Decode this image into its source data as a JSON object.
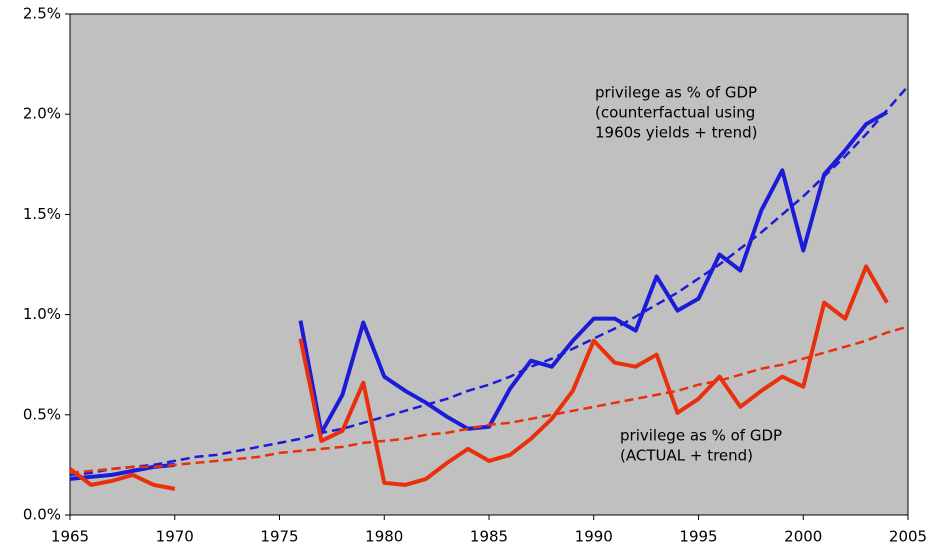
{
  "chart_data": {
    "type": "line",
    "x": [
      1965,
      1966,
      1967,
      1968,
      1969,
      1970,
      1971,
      1972,
      1973,
      1974,
      1975,
      1976,
      1977,
      1978,
      1979,
      1980,
      1981,
      1982,
      1983,
      1984,
      1985,
      1986,
      1987,
      1988,
      1989,
      1990,
      1991,
      1992,
      1993,
      1994,
      1995,
      1996,
      1997,
      1998,
      1999,
      2000,
      2001,
      2002,
      2003,
      2004,
      2005
    ],
    "series": [
      {
        "color": "#1c1cd8",
        "dashed": false,
        "values": [
          0.18,
          0.19,
          0.2,
          0.22,
          0.24,
          0.25,
          null,
          null,
          null,
          null,
          null,
          0.97,
          0.41,
          0.6,
          0.96,
          0.69,
          0.62,
          0.56,
          0.49,
          0.43,
          0.44,
          0.63,
          0.77,
          0.74,
          0.87,
          0.98,
          0.98,
          0.92,
          1.19,
          1.02,
          1.08,
          1.3,
          1.22,
          1.52,
          1.72,
          1.32,
          1.7,
          1.82,
          1.95,
          2.01,
          null
        ]
      },
      {
        "color": "#1c1cd8",
        "dashed": true,
        "values": [
          0.2,
          0.21,
          0.23,
          0.24,
          0.25,
          0.27,
          0.29,
          0.3,
          0.32,
          0.34,
          0.36,
          0.38,
          0.41,
          0.43,
          0.46,
          0.49,
          0.52,
          0.55,
          0.58,
          0.62,
          0.65,
          0.69,
          0.74,
          0.78,
          0.83,
          0.88,
          0.93,
          0.99,
          1.05,
          1.11,
          1.18,
          1.25,
          1.33,
          1.41,
          1.5,
          1.59,
          1.69,
          1.79,
          1.9,
          2.02,
          2.14
        ]
      },
      {
        "color": "#e8300c",
        "dashed": false,
        "values": [
          0.23,
          0.15,
          0.17,
          0.2,
          0.15,
          0.13,
          null,
          null,
          null,
          null,
          null,
          0.88,
          0.37,
          0.42,
          0.66,
          0.16,
          0.15,
          0.18,
          0.26,
          0.33,
          0.27,
          0.3,
          0.38,
          0.48,
          0.62,
          0.87,
          0.76,
          0.74,
          0.8,
          0.51,
          0.58,
          0.69,
          0.54,
          0.62,
          0.69,
          0.64,
          1.06,
          0.98,
          1.24,
          1.06,
          null
        ]
      },
      {
        "color": "#e8300c",
        "dashed": true,
        "values": [
          0.21,
          0.22,
          0.23,
          0.24,
          0.24,
          0.25,
          0.26,
          0.27,
          0.28,
          0.29,
          0.31,
          0.32,
          0.33,
          0.34,
          0.36,
          0.37,
          0.38,
          0.4,
          0.41,
          0.43,
          0.45,
          0.46,
          0.48,
          0.5,
          0.52,
          0.54,
          0.56,
          0.58,
          0.6,
          0.62,
          0.65,
          0.67,
          0.7,
          0.73,
          0.75,
          0.78,
          0.81,
          0.84,
          0.87,
          0.91,
          0.94
        ]
      }
    ],
    "xlim": [
      1965,
      2005
    ],
    "xticks": [
      1965,
      1970,
      1975,
      1980,
      1985,
      1990,
      1995,
      2000,
      2005
    ],
    "ylim": [
      0,
      2.5
    ],
    "yticks": [
      {
        "value": 0,
        "label": "0.0%"
      },
      {
        "value": 0.5,
        "label": "0.5%"
      },
      {
        "value": 1,
        "label": "1.0%"
      },
      {
        "value": 1.5,
        "label": "1.5%"
      },
      {
        "value": 2,
        "label": "2.0%"
      },
      {
        "value": 2.5,
        "label": "2.5%"
      }
    ],
    "plot_background": "#c0c0c0",
    "annotations": [
      {
        "lines": [
          "privilege as % of GDP",
          "(counterfactual using",
          "1960s yields + trend)"
        ]
      },
      {
        "lines": [
          "privilege as % of GDP",
          "(ACTUAL + trend)"
        ]
      }
    ]
  }
}
